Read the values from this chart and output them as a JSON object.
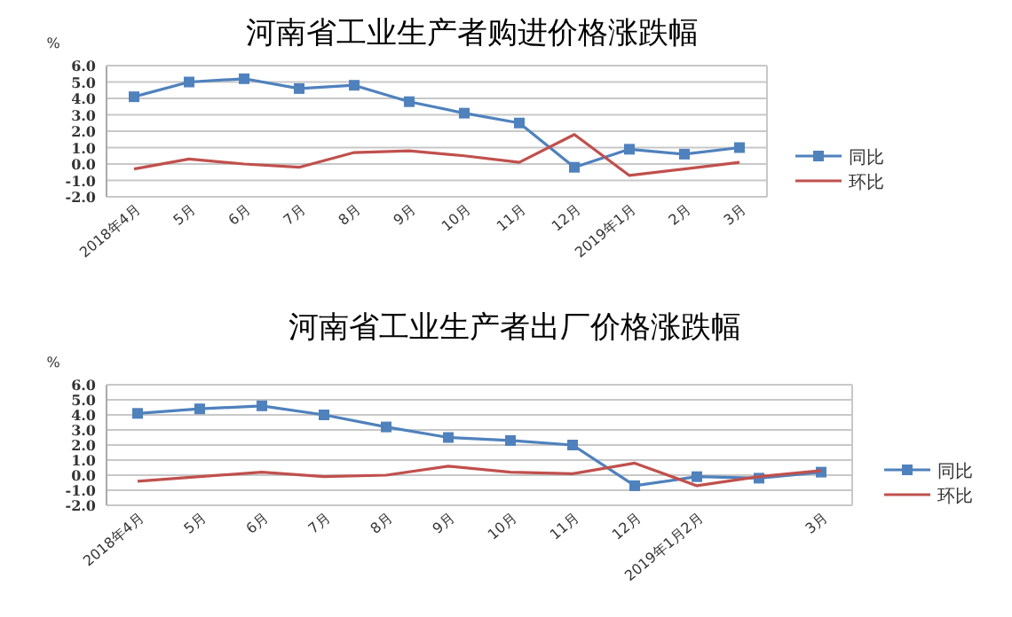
{
  "chart_data": [
    {
      "type": "line",
      "title": "河南省工业生产者购进价格涨跌幅",
      "ylabel": "%",
      "categories": [
        "2018年4月",
        "5月",
        "6月",
        "7月",
        "8月",
        "9月",
        "10月",
        "11月",
        "12月",
        "2019年1月",
        "2月",
        "3月"
      ],
      "series": [
        {
          "name": "同比",
          "color": "#4f81bd",
          "marker": "square",
          "values": [
            4.1,
            5.0,
            5.2,
            4.6,
            4.8,
            3.8,
            3.1,
            2.5,
            -0.2,
            0.9,
            0.6,
            1.0
          ]
        },
        {
          "name": "环比",
          "color": "#c0504d",
          "marker": "none",
          "values": [
            -0.3,
            0.3,
            0.0,
            -0.2,
            0.7,
            0.8,
            0.5,
            0.1,
            1.8,
            -0.7,
            -0.3,
            0.1
          ]
        }
      ],
      "ylim": [
        -2,
        6
      ],
      "yticks": [
        {
          "value": -2,
          "label": "-2.0"
        },
        {
          "value": -1,
          "label": "-1.0"
        },
        {
          "value": 0,
          "label": "0.0"
        },
        {
          "value": 1,
          "label": "1.0"
        },
        {
          "value": 2,
          "label": "2.0"
        },
        {
          "value": 3,
          "label": "3.0"
        },
        {
          "value": 4,
          "label": "4.0"
        },
        {
          "value": 5,
          "label": "5.0"
        },
        {
          "value": 6,
          "label": "6.0"
        }
      ],
      "grid": "y",
      "legend": "right",
      "line_style": "solid"
    },
    {
      "type": "line",
      "title": "河南省工业生产者出厂价格涨跌幅",
      "ylabel": "%",
      "categories": [
        "2018年4月",
        "5月",
        "6月",
        "7月",
        "8月",
        "9月",
        "10月",
        "11月",
        "12月",
        "2019年1月2月",
        null,
        "3月"
      ],
      "series": [
        {
          "name": "同比",
          "color": "#4f81bd",
          "marker": "square",
          "values": [
            4.1,
            4.4,
            4.6,
            4.0,
            3.2,
            2.5,
            2.3,
            2.0,
            -0.7,
            -0.1,
            -0.2,
            0.2
          ]
        },
        {
          "name": "环比",
          "color": "#c0504d",
          "marker": "none",
          "values": [
            -0.4,
            -0.1,
            0.2,
            -0.1,
            0.0,
            0.6,
            0.2,
            0.1,
            0.8,
            -0.7,
            -0.1,
            0.3
          ]
        }
      ],
      "ylim": [
        -2,
        6
      ],
      "yticks": [
        {
          "value": -2,
          "label": "-2.0"
        },
        {
          "value": -1,
          "label": "-1.0"
        },
        {
          "value": 0,
          "label": "0.0"
        },
        {
          "value": 1,
          "label": "1.0"
        },
        {
          "value": 2,
          "label": "2.0"
        },
        {
          "value": 3,
          "label": "3.0"
        },
        {
          "value": 4,
          "label": "4.0"
        },
        {
          "value": 5,
          "label": "5.0"
        },
        {
          "value": 6,
          "label": "6.0"
        }
      ],
      "grid": "y",
      "legend": "right",
      "line_style": "solid"
    }
  ]
}
